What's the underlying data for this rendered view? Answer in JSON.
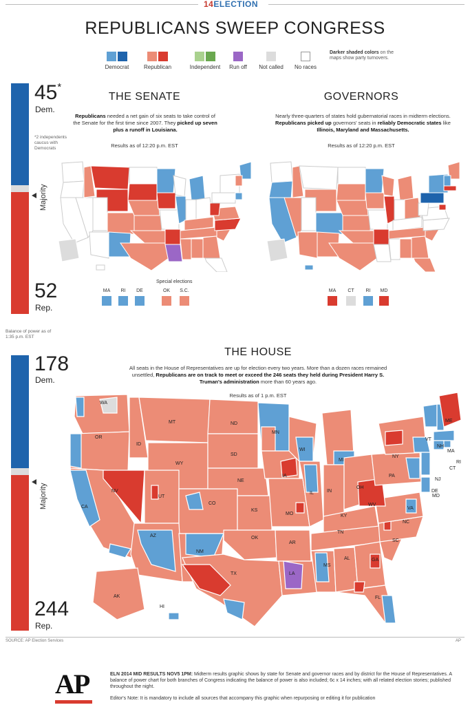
{
  "header": {
    "brand_num": "14",
    "brand_text": "ELECTION",
    "headline": "REPUBLICANS SWEEP CONGRESS"
  },
  "colors": {
    "dem": "#1e63ac",
    "dem_light": "#5fa0d4",
    "rep": "#d93b2f",
    "rep_light": "#ec8c76",
    "ind_light": "#a9d18e",
    "ind": "#6aa84f",
    "runoff": "#9b67c6",
    "not_called": "#dcdcdc",
    "no_race": "#ffffff"
  },
  "legend": {
    "items": [
      {
        "label": "Democrat",
        "colors": [
          "#5fa0d4",
          "#1e63ac"
        ]
      },
      {
        "label": "Republican",
        "colors": [
          "#ec8c76",
          "#d93b2f"
        ]
      },
      {
        "label": "Independent",
        "colors": [
          "#a9d18e",
          "#6aa84f"
        ]
      },
      {
        "label": "Run off",
        "colors": [
          "#9b67c6"
        ]
      },
      {
        "label": "Not called",
        "colors": [
          "#dcdcdc"
        ]
      },
      {
        "label": "No races",
        "colors": [
          "#ffffff"
        ]
      }
    ],
    "note_bold": "Darker shaded colors",
    "note_rest": "on the maps show party turnovers."
  },
  "senate": {
    "dem_count": "45",
    "dem_asterisk": "*",
    "dem_label": "Dem.",
    "rep_count": "52",
    "rep_label": "Rep.",
    "majority": "Majority",
    "footnote": "*2 independents caucus with Democrats",
    "title": "THE SENATE",
    "para_b1": "Republicans",
    "para_t1": " needed a net gain of six seats to take control of the Senate for the first time since 2007. They ",
    "para_b2": "picked up seven plus a runoff in Louisiana.",
    "results": "Results as of 12:20 p.m. EST",
    "special_label": "Special elections",
    "small_states": [
      {
        "abbr": "MA",
        "color": "#5fa0d4"
      },
      {
        "abbr": "RI",
        "color": "#5fa0d4"
      },
      {
        "abbr": "DE",
        "color": "#5fa0d4"
      }
    ],
    "special_states": [
      {
        "abbr": "OK",
        "color": "#ec8c76"
      },
      {
        "abbr": "S.C.",
        "color": "#ec8c76"
      }
    ]
  },
  "governors": {
    "title": "GOVERNORS",
    "para_t1": "Nearly three-quarters of states hold gubernatorial races in midterm elections. ",
    "para_b1": "Republicans picked up",
    "para_t2": " governors' seats in ",
    "para_b2": "reliably Democratic states",
    "para_t3": " like ",
    "para_b3": "Illinois, Maryland and Massachusetts.",
    "results": "Results as of 12:20 p.m. EST",
    "small_states": [
      {
        "abbr": "MA",
        "color": "#d93b2f"
      },
      {
        "abbr": "CT",
        "color": "#dcdcdc"
      },
      {
        "abbr": "RI",
        "color": "#5fa0d4"
      },
      {
        "abbr": "MD",
        "color": "#d93b2f"
      }
    ]
  },
  "balance_note": "Balance of power as of 1:35 p.m. EST",
  "house": {
    "dem_count": "178",
    "dem_label": "Dem.",
    "rep_count": "244",
    "rep_label": "Rep.",
    "majority": "Majority",
    "title": "THE HOUSE",
    "para_t1": "All seats in the House of Representatives are up for election every two years. More than a dozen races remained unsettled, ",
    "para_b1": "Republicans are on track to meet or exceed the 246 seats they held during President Harry S. Truman's administration",
    "para_t2": " more than 60 years ago.",
    "results": "Results as of 1 p.m. EST",
    "state_labels": [
      "WA",
      "OR",
      "CA",
      "NV",
      "ID",
      "MT",
      "WY",
      "UT",
      "AZ",
      "CO",
      "NM",
      "ND",
      "SD",
      "NE",
      "KS",
      "OK",
      "TX",
      "MN",
      "IA",
      "MO",
      "AR",
      "LA",
      "WI",
      "IL",
      "MI",
      "IN",
      "OH",
      "KY",
      "TN",
      "MS",
      "AL",
      "GA",
      "FL",
      "SC",
      "NC",
      "VA",
      "WV",
      "PA",
      "NY",
      "VT",
      "NH",
      "ME",
      "MA",
      "RI",
      "CT",
      "NJ",
      "DE",
      "MD",
      "AK",
      "HI"
    ]
  },
  "footer": {
    "source": "SOURCE: AP Election Services",
    "ap_credit": "AP",
    "logo": "AP",
    "caption_bold": "ELN 2014 MID RESULTS NOV5 1PM:",
    "caption_rest": " Midterm results graphic shows by state for Senate and governor races and by district for the House of Representatives. A balance of power chart for both branches of Congress indicating the balance of power is also included; 6c x 14 inches; with all related election stories; published throughout the night.",
    "editor_note": "Editor's Note: It is mandatory to include all sources that accompany this graphic when repurposing or editing it for publication"
  }
}
